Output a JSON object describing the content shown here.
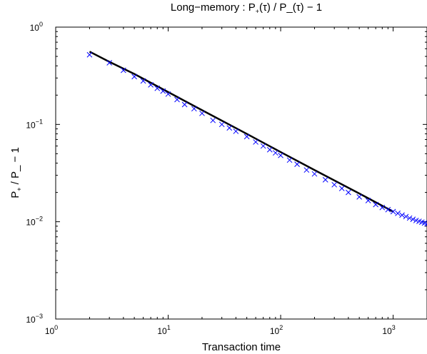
{
  "chart_data": {
    "type": "scatter",
    "title": "Long−memory : P+(τ) / P_(τ) − 1",
    "title_parts": {
      "prefix": "Long−memory : P",
      "sub1": "+",
      "mid": "(τ) / P_(τ) − 1"
    },
    "xlabel": "Transaction time",
    "ylabel": "P+ / P_ − 1",
    "ylabel_parts": {
      "p1": "P",
      "sub": "+",
      "rest": " / P_ − 1"
    },
    "x_scale": "log",
    "y_scale": "log",
    "xlim": [
      1,
      2000
    ],
    "ylim": [
      0.001,
      1
    ],
    "x_ticks": [
      {
        "value": 1,
        "base": "10",
        "exp": "0"
      },
      {
        "value": 10,
        "base": "10",
        "exp": "1"
      },
      {
        "value": 100,
        "base": "10",
        "exp": "2"
      },
      {
        "value": 1000,
        "base": "10",
        "exp": "3"
      }
    ],
    "y_ticks": [
      {
        "value": 0.001,
        "base": "10",
        "exp": "−3"
      },
      {
        "value": 0.01,
        "base": "10",
        "exp": "−2"
      },
      {
        "value": 0.1,
        "base": "10",
        "exp": "−1"
      },
      {
        "value": 1,
        "base": "10",
        "exp": "0"
      }
    ],
    "grid": false,
    "series": [
      {
        "kind": "markers",
        "marker": "x",
        "color": "#0000ff",
        "x": [
          2,
          3,
          4,
          5,
          6,
          7,
          8,
          9,
          10,
          12,
          14,
          17,
          20,
          25,
          30,
          35,
          40,
          50,
          60,
          70,
          80,
          90,
          100,
          120,
          140,
          170,
          200,
          250,
          300,
          350,
          400,
          500,
          600,
          700,
          800,
          900,
          1000,
          1100,
          1200,
          1300,
          1400,
          1500,
          1600,
          1700,
          1800,
          1900,
          2000
        ],
        "y": [
          0.52,
          0.43,
          0.36,
          0.31,
          0.28,
          0.255,
          0.235,
          0.22,
          0.205,
          0.18,
          0.16,
          0.145,
          0.13,
          0.11,
          0.1,
          0.092,
          0.085,
          0.075,
          0.066,
          0.06,
          0.055,
          0.051,
          0.048,
          0.043,
          0.039,
          0.034,
          0.031,
          0.027,
          0.024,
          0.022,
          0.02,
          0.018,
          0.0165,
          0.015,
          0.014,
          0.0133,
          0.0127,
          0.0122,
          0.0117,
          0.0113,
          0.0109,
          0.0106,
          0.0103,
          0.0101,
          0.0099,
          0.0097,
          0.0095
        ]
      },
      {
        "kind": "line",
        "color": "#000000",
        "x": [
          2,
          3,
          5,
          10,
          20,
          50,
          100,
          200,
          500,
          1000
        ],
        "y": [
          0.56,
          0.44,
          0.33,
          0.215,
          0.14,
          0.08,
          0.052,
          0.034,
          0.0195,
          0.0127
        ]
      }
    ]
  }
}
